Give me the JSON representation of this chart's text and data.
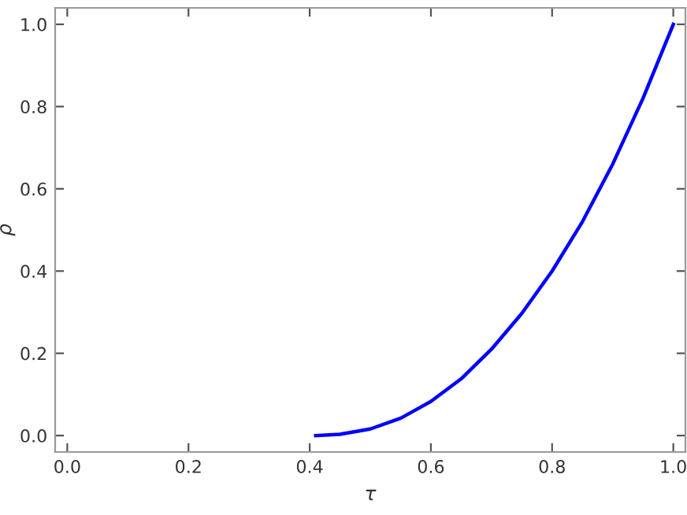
{
  "chart_data": {
    "type": "line",
    "xlabel": "τ",
    "ylabel": "ρ",
    "series": [
      {
        "color": "#0000ff",
        "x": [
          0.41,
          0.45,
          0.5,
          0.55,
          0.6,
          0.65,
          0.7,
          0.75,
          0.8,
          0.85,
          0.9,
          0.95,
          1.0
        ],
        "values": [
          0,
          0.003,
          0.016,
          0.042,
          0.083,
          0.138,
          0.21,
          0.297,
          0.4,
          0.52,
          0.66,
          0.82,
          1.0
        ]
      }
    ],
    "xlim": [
      -0.02,
      1.02
    ],
    "ylim": [
      -0.04,
      1.04
    ],
    "xticks": [
      {
        "value": 0,
        "label": "0.0"
      },
      {
        "value": 0.2,
        "label": "0.2"
      },
      {
        "value": 0.4,
        "label": "0.4"
      },
      {
        "value": 0.6,
        "label": "0.6"
      },
      {
        "value": 0.8,
        "label": "0.8"
      },
      {
        "value": 1,
        "label": "1.0"
      }
    ],
    "yticks": [
      {
        "value": 0,
        "label": "0.0"
      },
      {
        "value": 0.2,
        "label": "0.2"
      },
      {
        "value": 0.4,
        "label": "0.4"
      },
      {
        "value": 0.6,
        "label": "0.6"
      },
      {
        "value": 0.8,
        "label": "0.8"
      },
      {
        "value": 1,
        "label": "1.0"
      }
    ],
    "grid": false,
    "legend": false,
    "marker": "none",
    "line_style": "solid"
  }
}
